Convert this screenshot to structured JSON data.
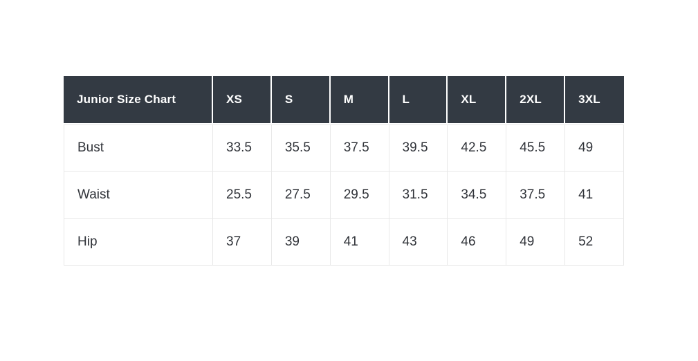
{
  "page": {
    "background": "#ffffff"
  },
  "chart_data": {
    "type": "table",
    "title": "Junior Size Chart",
    "columns": [
      "XS",
      "S",
      "M",
      "L",
      "XL",
      "2XL",
      "3XL"
    ],
    "rows": [
      {
        "label": "Bust",
        "values": [
          33.5,
          35.5,
          37.5,
          39.5,
          42.5,
          45.5,
          49
        ]
      },
      {
        "label": "Waist",
        "values": [
          25.5,
          27.5,
          29.5,
          31.5,
          34.5,
          37.5,
          41
        ]
      },
      {
        "label": "Hip",
        "values": [
          37,
          39,
          41,
          43,
          46,
          49,
          52
        ]
      }
    ],
    "colors": {
      "header_bg": "#333a43",
      "header_text": "#ffffff",
      "body_text": "#303339",
      "border": "#e8e8e8",
      "page_bg": "#ffffff"
    }
  }
}
